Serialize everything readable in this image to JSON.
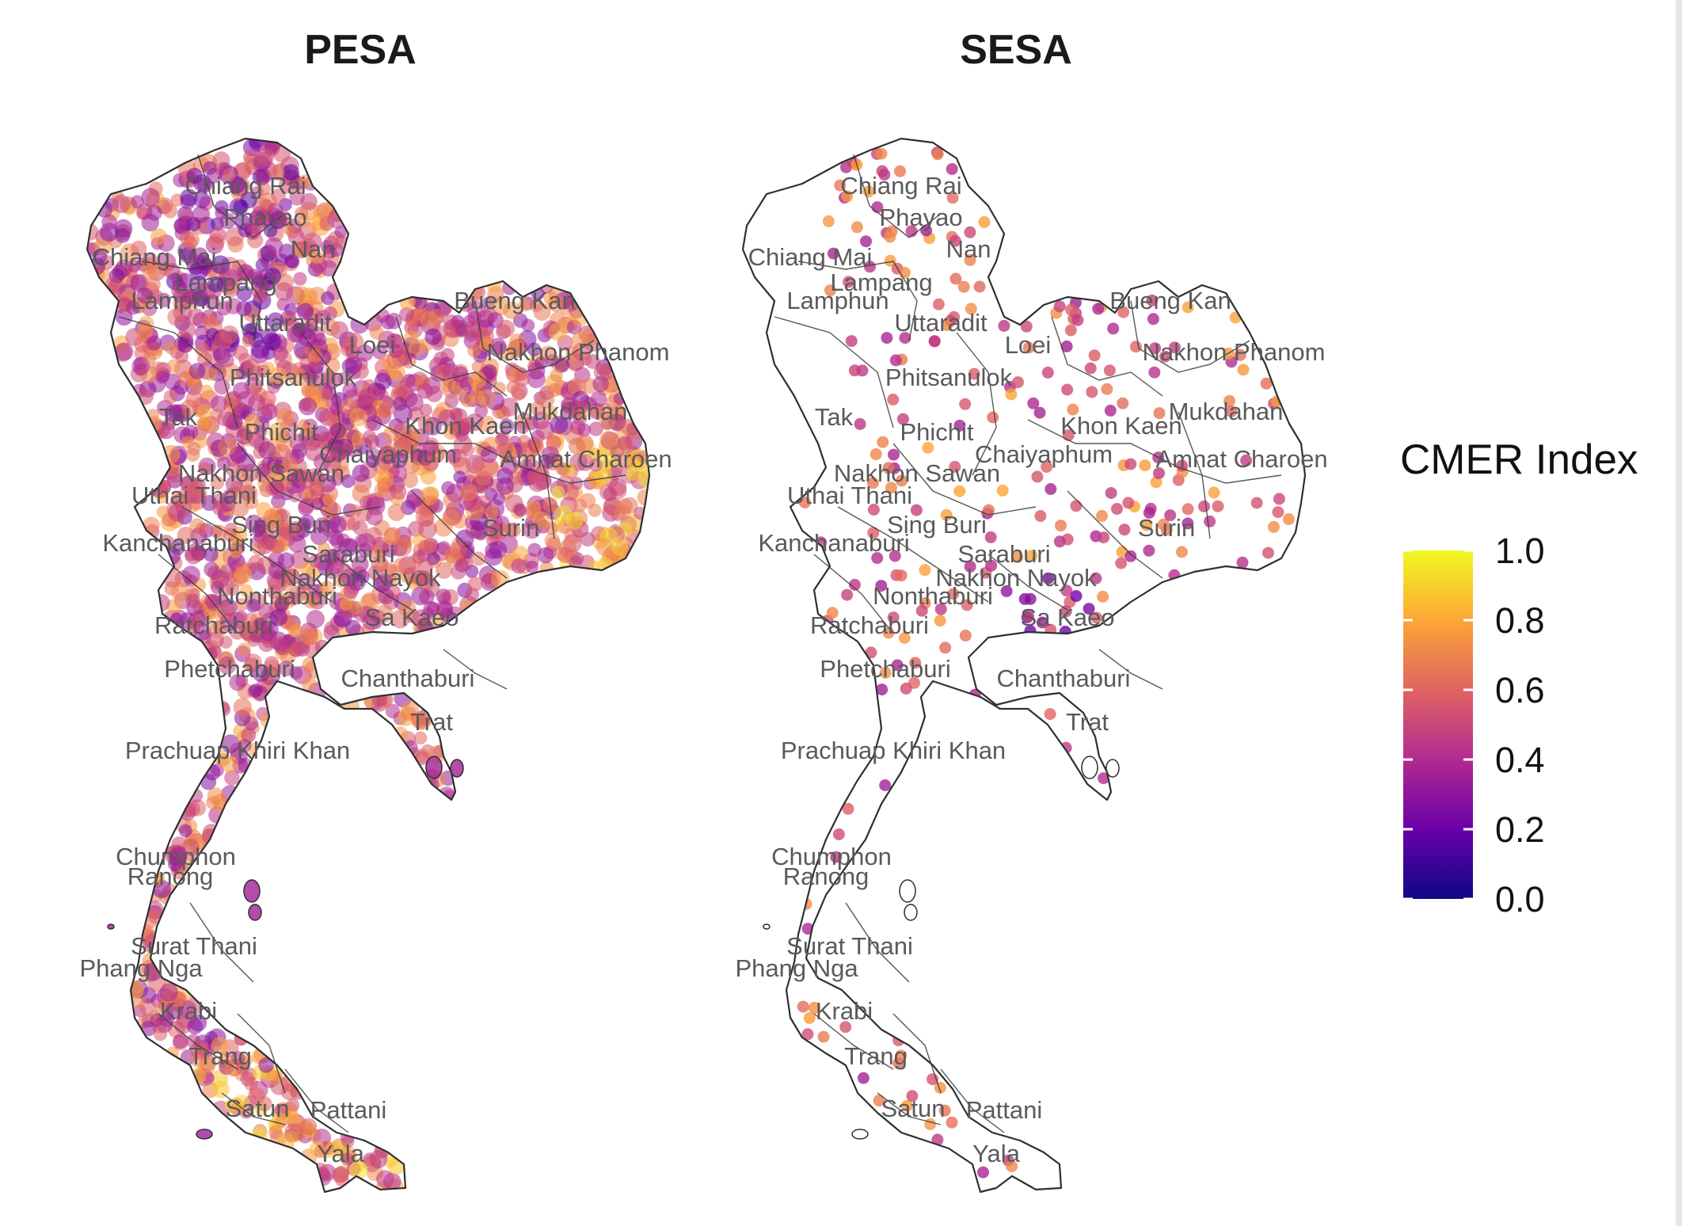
{
  "panels": [
    {
      "title": "PESA"
    },
    {
      "title": "SESA"
    }
  ],
  "legend": {
    "title": "CMER Index",
    "ticks": [
      "1.0",
      "0.8",
      "0.6",
      "0.4",
      "0.2",
      "0.0"
    ],
    "colors": [
      "#0d0887",
      "#6a00a8",
      "#b12a90",
      "#e16462",
      "#fca636",
      "#f0f921"
    ]
  },
  "provinces": [
    {
      "name": "Chiang Rai"
    },
    {
      "name": "Phayao"
    },
    {
      "name": "Nan"
    },
    {
      "name": "Chiang Mai"
    },
    {
      "name": "Lampang"
    },
    {
      "name": "Lamphun"
    },
    {
      "name": "Uttaradit"
    },
    {
      "name": "Bueng Kan"
    },
    {
      "name": "Loei"
    },
    {
      "name": "Nakhon Phanom"
    },
    {
      "name": "Phitsanulok"
    },
    {
      "name": "Mukdahan"
    },
    {
      "name": "Tak"
    },
    {
      "name": "Khon Kaen"
    },
    {
      "name": "Phichit"
    },
    {
      "name": "Amnat Charoen"
    },
    {
      "name": "Chaiyaphum"
    },
    {
      "name": "Nakhon Sawan"
    },
    {
      "name": "Uthai Thani"
    },
    {
      "name": "Sing Buri"
    },
    {
      "name": "Surin"
    },
    {
      "name": "Kanchanaburi"
    },
    {
      "name": "Saraburi"
    },
    {
      "name": "Nakhon Nayok"
    },
    {
      "name": "Nonthaburi"
    },
    {
      "name": "Sa Kaeo"
    },
    {
      "name": "Ratchaburi"
    },
    {
      "name": "Phetchaburi"
    },
    {
      "name": "Chanthaburi"
    },
    {
      "name": "Trat"
    },
    {
      "name": "Prachuap Khiri Khan"
    },
    {
      "name": "Chumphon"
    },
    {
      "name": "Ranong"
    },
    {
      "name": "Surat Thani"
    },
    {
      "name": "Phang Nga"
    },
    {
      "name": "Krabi"
    },
    {
      "name": "Trang"
    },
    {
      "name": "Satun"
    },
    {
      "name": "Pattani"
    },
    {
      "name": "Yala"
    }
  ]
}
